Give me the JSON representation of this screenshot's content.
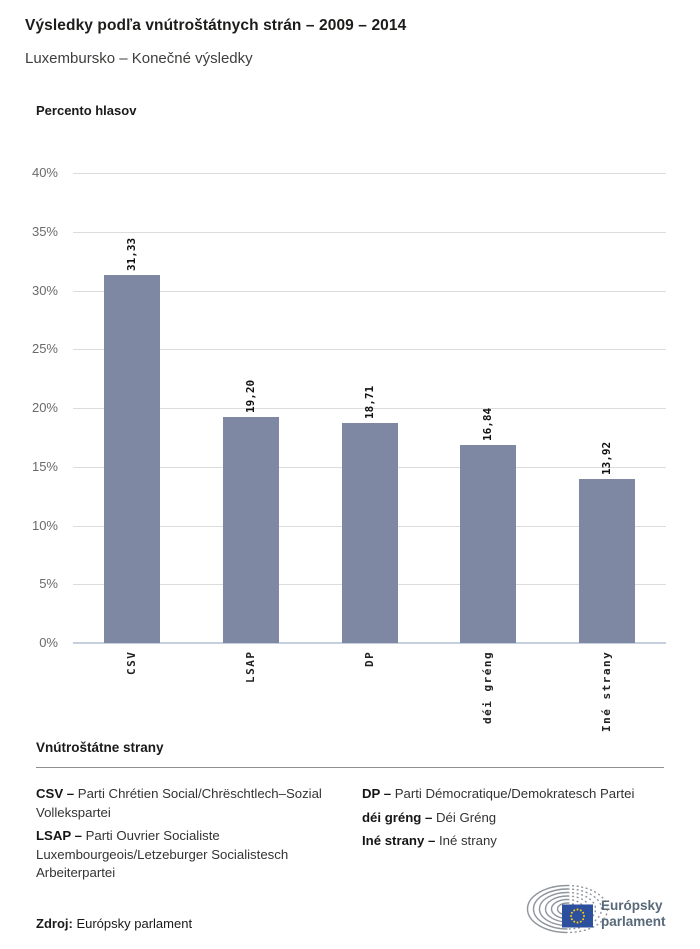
{
  "header": {
    "title": "Výsledky podľa vnútroštátnych strán – 2009 – 2014",
    "subtitle": "Luxembursko – Konečné výsledky"
  },
  "chart_data": {
    "type": "bar",
    "categories": [
      "CSV",
      "LSAP",
      "DP",
      "déi gréng",
      "Iné strany"
    ],
    "values": [
      31.33,
      19.2,
      18.71,
      16.84,
      13.92
    ],
    "value_labels": [
      "31,33",
      "19,20",
      "18,71",
      "16,84",
      "13,92"
    ],
    "ylabel": "Percento hlasov",
    "xlabel": "",
    "ylim": [
      0,
      40
    ],
    "ytick_step": 5,
    "ytick_suffix": "%",
    "grid": true,
    "legend_position": "none",
    "bar_color": "#7e88a3",
    "gridline_color": "#dcdcdc",
    "baseline_color": "#c6cfde",
    "tick_label_color": "#6a6a6a"
  },
  "legend": {
    "heading": "Vnútroštátne strany",
    "columns": [
      [
        {
          "term": "CSV –",
          "definition": "Parti Chrétien Social/Chrëschtlech–Sozial Vollekspartei"
        },
        {
          "term": "LSAP –",
          "definition": "Parti Ouvrier Socialiste Luxembourgeois/Letzeburger Socialistesch Arbeiterpartei"
        }
      ],
      [
        {
          "term": "DP –",
          "definition": "Parti Démocratique/Demokratesch Partei"
        },
        {
          "term": "déi gréng –",
          "definition": "Déi Gréng"
        },
        {
          "term": "Iné strany –",
          "definition": "Iné strany"
        }
      ]
    ]
  },
  "footer": {
    "source_label": "Zdroj:",
    "source_text": "Európsky parlament",
    "logo": {
      "line1": "Európsky",
      "line2": "parlament",
      "flag_color": "#2c4f9e",
      "star_color": "#ffcc00",
      "arc_color": "#8e959b",
      "text_color": "#58697a"
    }
  }
}
